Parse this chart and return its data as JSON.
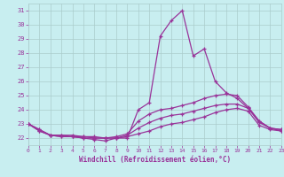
{
  "xlabel": "Windchill (Refroidissement éolien,°C)",
  "background_color": "#c8eef0",
  "grid_color": "#aacccc",
  "line_color": "#993399",
  "hours": [
    0,
    1,
    2,
    3,
    4,
    5,
    6,
    7,
    8,
    9,
    10,
    11,
    12,
    13,
    14,
    15,
    16,
    17,
    18,
    19,
    20,
    21,
    22,
    23
  ],
  "line1": [
    23.0,
    22.6,
    22.2,
    22.2,
    22.1,
    22.0,
    21.9,
    21.8,
    22.0,
    22.0,
    24.0,
    24.5,
    29.2,
    30.3,
    31.0,
    27.8,
    28.3,
    26.0,
    25.2,
    24.8,
    24.1,
    23.2,
    22.7,
    22.6
  ],
  "line2": [
    23.0,
    22.6,
    22.2,
    22.2,
    22.2,
    22.1,
    22.1,
    22.0,
    22.1,
    22.3,
    23.2,
    23.7,
    24.0,
    24.1,
    24.3,
    24.5,
    24.8,
    25.0,
    25.1,
    25.0,
    24.2,
    23.2,
    22.7,
    22.6
  ],
  "line3": [
    23.0,
    22.5,
    22.2,
    22.1,
    22.1,
    22.1,
    22.0,
    22.0,
    22.0,
    22.2,
    22.7,
    23.1,
    23.4,
    23.6,
    23.7,
    23.9,
    24.1,
    24.3,
    24.4,
    24.4,
    24.1,
    23.1,
    22.7,
    22.5
  ],
  "line4": [
    23.0,
    22.5,
    22.2,
    22.1,
    22.1,
    22.0,
    22.0,
    22.0,
    22.0,
    22.1,
    22.3,
    22.5,
    22.8,
    23.0,
    23.1,
    23.3,
    23.5,
    23.8,
    24.0,
    24.1,
    23.9,
    22.9,
    22.6,
    22.5
  ],
  "ylim": [
    21.5,
    31.5
  ],
  "yticks": [
    22,
    23,
    24,
    25,
    26,
    27,
    28,
    29,
    30,
    31
  ],
  "xlim": [
    0,
    23
  ]
}
